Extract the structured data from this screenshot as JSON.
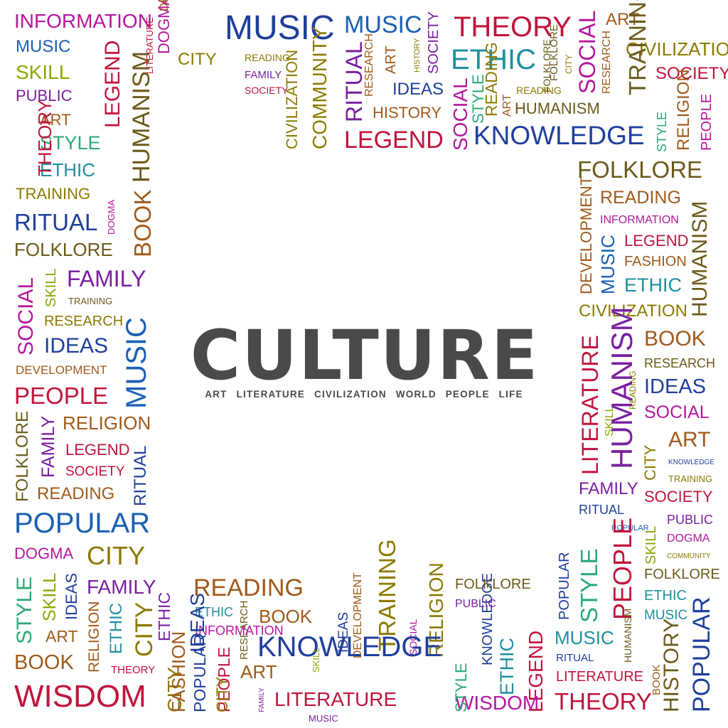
{
  "title": "CULTURE",
  "subtitle": "ART LITERATURE CIVILIZATION WORLD PEOPLE LIFE",
  "title_color": "#4a4a4a",
  "subtitle_color": "#4a4a4a",
  "palette": {
    "magenta": "#b5179e",
    "blue": "#1a5fb4",
    "green": "#2aa876",
    "crimson": "#c0143c",
    "purple": "#7a1fa2",
    "olive": "#8c7a00",
    "brown": "#a05a1a",
    "teal": "#1f8fa0",
    "navy": "#1f3f9c",
    "darkolive": "#6b5a1a",
    "red": "#d41c1c",
    "lime": "#8aa800",
    "gray": "#5e5e5e"
  },
  "words": [
    {
      "text": "INFORMATION",
      "color": "#b5179e"
    },
    {
      "text": "MUSIC",
      "color": "#1a5fb4"
    },
    {
      "text": "SKILL",
      "color": "#8aa800"
    },
    {
      "text": "PUBLIC",
      "color": "#7a1fa2"
    },
    {
      "text": "ART",
      "color": "#a05a1a"
    },
    {
      "text": "STYLE",
      "color": "#2aa876"
    },
    {
      "text": "ETHIC",
      "color": "#1f8fa0"
    },
    {
      "text": "TRAINING",
      "color": "#8c7a00"
    },
    {
      "text": "RITUAL",
      "color": "#1f3f9c"
    },
    {
      "text": "FOLKLORE",
      "color": "#6b5a1a"
    },
    {
      "text": "FAMILY",
      "color": "#7a1fa2"
    },
    {
      "text": "TRAINING",
      "color": "#6b5a1a"
    },
    {
      "text": "RESEARCH",
      "color": "#8c7a00"
    },
    {
      "text": "IDEAS",
      "color": "#1f3f9c"
    },
    {
      "text": "DEVELOPMENT",
      "color": "#a05a1a"
    },
    {
      "text": "PEOPLE",
      "color": "#c0143c"
    },
    {
      "text": "RELIGION",
      "color": "#a05a1a"
    },
    {
      "text": "LEGEND",
      "color": "#c0143c"
    },
    {
      "text": "SOCIETY",
      "color": "#c0143c"
    },
    {
      "text": "READING",
      "color": "#a05a1a"
    },
    {
      "text": "POPULAR",
      "color": "#1a5fb4"
    },
    {
      "text": "DOGMA",
      "color": "#b5179e"
    },
    {
      "text": "CITY",
      "color": "#8c7a00"
    },
    {
      "text": "FAMILY",
      "color": "#7a1fa2"
    },
    {
      "text": "ART",
      "color": "#a05a1a"
    },
    {
      "text": "BOOK",
      "color": "#a05a1a"
    },
    {
      "text": "THEORY",
      "color": "#c0143c"
    },
    {
      "text": "WISDOM",
      "color": "#c0143c"
    },
    {
      "text": "THEORY",
      "color": "#c0143c"
    },
    {
      "text": "LEGEND",
      "color": "#c0143c"
    },
    {
      "text": "HUMANISM",
      "color": "#6b5a1a"
    },
    {
      "text": "BOOK",
      "color": "#a05a1a"
    },
    {
      "text": "DOGMA",
      "color": "#b5179e"
    },
    {
      "text": "SOCIAL",
      "color": "#b5179e"
    },
    {
      "text": "SKILL",
      "color": "#8aa800"
    },
    {
      "text": "MUSIC",
      "color": "#1a5fb4"
    },
    {
      "text": "FOLKLORE",
      "color": "#6b5a1a"
    },
    {
      "text": "FAMILY",
      "color": "#7a1fa2"
    },
    {
      "text": "RITUAL",
      "color": "#1f3f9c"
    },
    {
      "text": "STYLE",
      "color": "#2aa876"
    },
    {
      "text": "SKILL",
      "color": "#8aa800"
    },
    {
      "text": "IDEAS",
      "color": "#1f3f9c"
    },
    {
      "text": "RELIGION",
      "color": "#a05a1a"
    },
    {
      "text": "ETHIC",
      "color": "#1f8fa0"
    },
    {
      "text": "CITY",
      "color": "#8c7a00"
    },
    {
      "text": "ETHIC",
      "color": "#7a1fa2"
    },
    {
      "text": "CITY",
      "color": "#8c7a00"
    },
    {
      "text": "POPULAR",
      "color": "#1f3f9c"
    },
    {
      "text": "PEOPLE",
      "color": "#c0143c"
    },
    {
      "text": "DOGMA",
      "color": "#b5179e"
    },
    {
      "text": "DEVELOPMENT",
      "color": "#a05a1a"
    },
    {
      "text": "LITERATURE",
      "color": "#c0143c"
    },
    {
      "text": "CITY",
      "color": "#8c7a00"
    },
    {
      "text": "MUSIC",
      "color": "#1f3f9c"
    },
    {
      "text": "READING",
      "color": "#8c7a00"
    },
    {
      "text": "FAMILY",
      "color": "#7a1fa2"
    },
    {
      "text": "SOCIETY",
      "color": "#c0143c"
    },
    {
      "text": "CIVILIZATION",
      "color": "#8c7a00"
    },
    {
      "text": "COMMUNITY",
      "color": "#8c7a00"
    },
    {
      "text": "MUSIC",
      "color": "#1a5fb4"
    },
    {
      "text": "RITUAL",
      "color": "#7a1fa2"
    },
    {
      "text": "RESEARCH",
      "color": "#a05a1a"
    },
    {
      "text": "ART",
      "color": "#a05a1a"
    },
    {
      "text": "HISTORY",
      "color": "#8c7a00"
    },
    {
      "text": "SOCIETY",
      "color": "#7a1fa2"
    },
    {
      "text": "IDEAS",
      "color": "#1f3f9c"
    },
    {
      "text": "HISTORY",
      "color": "#a05a1a"
    },
    {
      "text": "LEGEND",
      "color": "#c0143c"
    },
    {
      "text": "SOCIAL",
      "color": "#b5179e"
    },
    {
      "text": "THEORY",
      "color": "#c0143c"
    },
    {
      "text": "ETHIC",
      "color": "#1f8fa0"
    },
    {
      "text": "READING",
      "color": "#8c7a00"
    },
    {
      "text": "FOLKLORE",
      "color": "#6b5a1a"
    },
    {
      "text": "CITY",
      "color": "#8c7a00"
    },
    {
      "text": "STYLE",
      "color": "#2aa876"
    },
    {
      "text": "ART",
      "color": "#a05a1a"
    },
    {
      "text": "READING",
      "color": "#8c7a00"
    },
    {
      "text": "FOLKLORE",
      "color": "#6b5a1a"
    },
    {
      "text": "HUMANISM",
      "color": "#6b5a1a"
    },
    {
      "text": "KNOWLEDGE",
      "color": "#1f3f9c"
    },
    {
      "text": "SOCIAL",
      "color": "#b5179e"
    },
    {
      "text": "RESEARCH",
      "color": "#a05a1a"
    },
    {
      "text": "ART",
      "color": "#a05a1a"
    },
    {
      "text": "CIVILIZATION",
      "color": "#8c7a00"
    },
    {
      "text": "SOCIETY",
      "color": "#c0143c"
    },
    {
      "text": "STYLE",
      "color": "#2aa876"
    },
    {
      "text": "RELIGION",
      "color": "#a05a1a"
    },
    {
      "text": "PEOPLE",
      "color": "#b5179e"
    },
    {
      "text": "TRAINING",
      "color": "#6b5a1a"
    },
    {
      "text": "FOLKLORE",
      "color": "#6b5a1a"
    },
    {
      "text": "READING",
      "color": "#a05a1a"
    },
    {
      "text": "INFORMATION",
      "color": "#b5179e"
    },
    {
      "text": "LEGEND",
      "color": "#c0143c"
    },
    {
      "text": "FASHION",
      "color": "#a05a1a"
    },
    {
      "text": "ETHIC",
      "color": "#1f8fa0"
    },
    {
      "text": "CIVILIZATION",
      "color": "#8c7a00"
    },
    {
      "text": "DEVELOPMENT",
      "color": "#a05a1a"
    },
    {
      "text": "MUSIC",
      "color": "#1a5fb4"
    },
    {
      "text": "HUMANISM",
      "color": "#6b5a1a"
    },
    {
      "text": "BOOK",
      "color": "#a05a1a"
    },
    {
      "text": "RESEARCH",
      "color": "#6b5a1a"
    },
    {
      "text": "IDEAS",
      "color": "#1f3f9c"
    },
    {
      "text": "SOCIAL",
      "color": "#b5179e"
    },
    {
      "text": "ART",
      "color": "#a05a1a"
    },
    {
      "text": "KNOWLEDGE",
      "color": "#1f3f9c"
    },
    {
      "text": "TRAINING",
      "color": "#8c7a00"
    },
    {
      "text": "SOCIETY",
      "color": "#c0143c"
    },
    {
      "text": "PUBLIC",
      "color": "#7a1fa2"
    },
    {
      "text": "DOGMA",
      "color": "#b5179e"
    },
    {
      "text": "COMMUNITY",
      "color": "#8c7a00"
    },
    {
      "text": "FOLKLORE",
      "color": "#6b5a1a"
    },
    {
      "text": "ETHIC",
      "color": "#1f8fa0"
    },
    {
      "text": "MUSIC",
      "color": "#1f8fa0"
    },
    {
      "text": "POPULAR",
      "color": "#1f3f9c"
    },
    {
      "text": "LITERATURE",
      "color": "#c0143c"
    },
    {
      "text": "SKILL",
      "color": "#8aa800"
    },
    {
      "text": "READING",
      "color": "#8c7a00"
    },
    {
      "text": "HUMANISM",
      "color": "#7a1fa2"
    },
    {
      "text": "CITY",
      "color": "#8c7a00"
    },
    {
      "text": "FAMILY",
      "color": "#7a1fa2"
    },
    {
      "text": "RITUAL",
      "color": "#1f3f9c"
    },
    {
      "text": "POPULAR",
      "color": "#1a5fb4"
    },
    {
      "text": "STYLE",
      "color": "#2aa876"
    },
    {
      "text": "PEOPLE",
      "color": "#c0143c"
    },
    {
      "text": "SKILL",
      "color": "#8aa800"
    },
    {
      "text": "MUSIC",
      "color": "#1f8fa0"
    },
    {
      "text": "RITUAL",
      "color": "#1f3f9c"
    },
    {
      "text": "LITERATURE",
      "color": "#c0143c"
    },
    {
      "text": "HUMANISM",
      "color": "#6b5a1a"
    },
    {
      "text": "BOOK",
      "color": "#a05a1a"
    },
    {
      "text": "HISTORY",
      "color": "#6b5a1a"
    },
    {
      "text": "THEORY",
      "color": "#c0143c"
    },
    {
      "text": "POPULAR",
      "color": "#1f3f9c"
    },
    {
      "text": "LEGEND",
      "color": "#c0143c"
    },
    {
      "text": "ETHIC",
      "color": "#1f8fa0"
    },
    {
      "text": "KNOWLEDGE",
      "color": "#1f3f9c"
    },
    {
      "text": "WISDOM",
      "color": "#b5179e"
    },
    {
      "text": "FOLKLORE",
      "color": "#6b5a1a"
    },
    {
      "text": "PUBLIC",
      "color": "#7a1fa2"
    },
    {
      "text": "STYLE",
      "color": "#2aa876"
    },
    {
      "text": "RELIGION",
      "color": "#8c7a00"
    },
    {
      "text": "SOCIAL",
      "color": "#b5179e"
    },
    {
      "text": "TRAINING",
      "color": "#8c7a00"
    },
    {
      "text": "LITERATURE",
      "color": "#c0143c"
    },
    {
      "text": "FAMILY",
      "color": "#7a1fa2"
    },
    {
      "text": "DEVELOPMENT",
      "color": "#a05a1a"
    },
    {
      "text": "IDEAS",
      "color": "#1f3f9c"
    },
    {
      "text": "KNOWLEDGE",
      "color": "#1f3f9c"
    },
    {
      "text": "BOOK",
      "color": "#a05a1a"
    },
    {
      "text": "READING",
      "color": "#a05a1a"
    },
    {
      "text": "ART",
      "color": "#a05a1a"
    },
    {
      "text": "SKILL",
      "color": "#8aa800"
    },
    {
      "text": "RESEARCH",
      "color": "#6b5a1a"
    },
    {
      "text": "INFORMATION",
      "color": "#b5179e"
    },
    {
      "text": "ETHIC",
      "color": "#1f8fa0"
    },
    {
      "text": "CITY",
      "color": "#8c7a00"
    },
    {
      "text": "FASHION",
      "color": "#a05a1a"
    },
    {
      "text": "IDEAS",
      "color": "#1f3f9c"
    },
    {
      "text": "MUSIC",
      "color": "#7a1fa2"
    },
    {
      "text": "PEOPLE",
      "color": "#b5179e"
    },
    {
      "text": "POPULAR",
      "color": "#7a1fa2"
    },
    {
      "text": "SKILL",
      "color": "#8aa800"
    },
    {
      "text": "PUBLIC",
      "color": "#7a1fa2"
    },
    {
      "text": "RELIGION",
      "color": "#a05a1a"
    },
    {
      "text": "LEGEND",
      "color": "#c0143c"
    },
    {
      "text": "SOCIETY",
      "color": "#c0143c"
    },
    {
      "text": "STYLE",
      "color": "#2aa876"
    },
    {
      "text": "ETHIC",
      "color": "#1f8fa0"
    },
    {
      "text": "MUSIC",
      "color": "#1a5fb4"
    },
    {
      "text": "LEGEND",
      "color": "#c0143c"
    },
    {
      "text": "KNOWLEDGE",
      "color": "#1f3f9c"
    },
    {
      "text": "ETHIC",
      "color": "#1f8fa0"
    },
    {
      "text": "SOCIAL",
      "color": "#b5179e"
    },
    {
      "text": "THEORY",
      "color": "#c0143c"
    },
    {
      "text": "PEOPLE",
      "color": "#c0143c"
    },
    {
      "text": "ETHIC",
      "color": "#7a1fa2"
    },
    {
      "text": "MUSIC",
      "color": "#7a1fa2"
    },
    {
      "text": "DOGMA",
      "color": "#b5179e"
    },
    {
      "text": "HUMANISM",
      "color": "#6b5a1a"
    },
    {
      "text": "ART",
      "color": "#a05a1a"
    },
    {
      "text": "LITERATURE",
      "color": "#c0143c"
    },
    {
      "text": "CIVILIZATION",
      "color": "#8c7a00"
    },
    {
      "text": "SOCIETY",
      "color": "#c0143c"
    },
    {
      "text": "STYLE",
      "color": "#2aa876"
    },
    {
      "text": "PEOPLE",
      "color": "#b5179e"
    },
    {
      "text": "SOCIAL",
      "color": "#b5179e"
    },
    {
      "text": "DOGMA",
      "color": "#b5179e"
    },
    {
      "text": "CITY",
      "color": "#8c7a00"
    }
  ]
}
